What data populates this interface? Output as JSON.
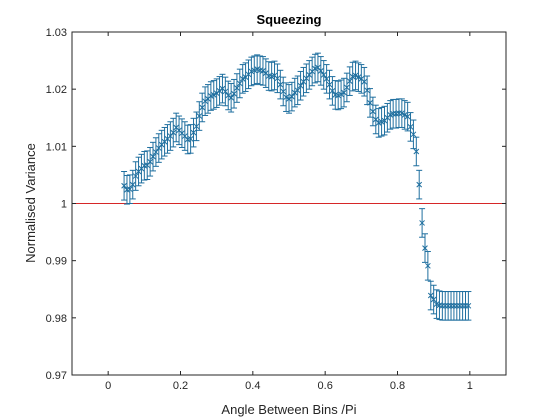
{
  "chart_data": {
    "type": "scatter",
    "title": "Squeezing",
    "xlabel": "Angle Between Bins /Pi",
    "ylabel": "Normalised Variance",
    "xlim": [
      -0.1,
      1.1
    ],
    "ylim": [
      0.97,
      1.03
    ],
    "x_ticks": [
      0,
      0.2,
      0.4,
      0.6,
      0.8,
      1
    ],
    "x_tick_labels": [
      "0",
      "0.2",
      "0.4",
      "0.6",
      "0.8",
      "1"
    ],
    "y_ticks": [
      0.97,
      0.98,
      0.99,
      1,
      1.01,
      1.02,
      1.03
    ],
    "y_tick_labels": [
      "0.97",
      "0.98",
      "0.99",
      "1",
      "1.01",
      "1.02",
      "1.03"
    ],
    "grid": false,
    "reference_line": {
      "y": 1,
      "color": "#d62728"
    },
    "series": [
      {
        "color": "#1f6f9f",
        "marker": "x",
        "error": 0.0025,
        "x": [
          0.044,
          0.052,
          0.06,
          0.068,
          0.076,
          0.084,
          0.092,
          0.1,
          0.108,
          0.116,
          0.124,
          0.132,
          0.14,
          0.148,
          0.156,
          0.164,
          0.172,
          0.18,
          0.188,
          0.196,
          0.204,
          0.212,
          0.22,
          0.228,
          0.236,
          0.244,
          0.252,
          0.26,
          0.268,
          0.276,
          0.284,
          0.292,
          0.3,
          0.308,
          0.316,
          0.324,
          0.332,
          0.34,
          0.348,
          0.356,
          0.364,
          0.372,
          0.38,
          0.388,
          0.396,
          0.404,
          0.412,
          0.42,
          0.428,
          0.436,
          0.444,
          0.452,
          0.46,
          0.468,
          0.476,
          0.484,
          0.492,
          0.5,
          0.508,
          0.516,
          0.524,
          0.532,
          0.54,
          0.548,
          0.556,
          0.564,
          0.572,
          0.58,
          0.588,
          0.596,
          0.604,
          0.612,
          0.62,
          0.628,
          0.636,
          0.644,
          0.652,
          0.66,
          0.668,
          0.676,
          0.684,
          0.692,
          0.7,
          0.708,
          0.716,
          0.724,
          0.732,
          0.74,
          0.748,
          0.756,
          0.764,
          0.772,
          0.78,
          0.788,
          0.796,
          0.804,
          0.812,
          0.82,
          0.828,
          0.836,
          0.844,
          0.852,
          0.86,
          0.868,
          0.876,
          0.884,
          0.892,
          0.9,
          0.908,
          0.916,
          0.924,
          0.932,
          0.94,
          0.948,
          0.956,
          0.964,
          0.972,
          0.98,
          0.988,
          0.996
        ],
        "y": [
          1.0031,
          1.0024,
          1.0025,
          1.0033,
          1.0048,
          1.0056,
          1.0061,
          1.0066,
          1.0067,
          1.0073,
          1.0082,
          1.009,
          1.0097,
          1.0103,
          1.0108,
          1.0113,
          1.0118,
          1.0124,
          1.0133,
          1.0128,
          1.0123,
          1.0118,
          1.0112,
          1.0113,
          1.0124,
          1.0135,
          1.0153,
          1.0168,
          1.0179,
          1.0183,
          1.0188,
          1.019,
          1.0193,
          1.0197,
          1.0201,
          1.0196,
          1.0189,
          1.0185,
          1.0192,
          1.0202,
          1.021,
          1.0218,
          1.0221,
          1.0226,
          1.0231,
          1.0233,
          1.0235,
          1.0233,
          1.0232,
          1.0228,
          1.0223,
          1.0222,
          1.0224,
          1.0219,
          1.0208,
          1.0196,
          1.0186,
          1.0183,
          1.0187,
          1.0194,
          1.0198,
          1.0206,
          1.0213,
          1.0219,
          1.0225,
          1.0231,
          1.0236,
          1.0238,
          1.0232,
          1.0225,
          1.0218,
          1.0208,
          1.0197,
          1.019,
          1.0189,
          1.0191,
          1.0194,
          1.0203,
          1.0214,
          1.0222,
          1.0224,
          1.0221,
          1.0218,
          1.0213,
          1.0198,
          1.0176,
          1.0161,
          1.0147,
          1.0141,
          1.0143,
          1.0145,
          1.015,
          1.0155,
          1.0157,
          1.0157,
          1.0158,
          1.0158,
          1.0155,
          1.0152,
          1.0134,
          1.0121,
          1.0091,
          1.0033,
          0.9966,
          0.9922,
          0.9891,
          0.9839,
          0.9832,
          0.9824,
          0.9822,
          0.9821,
          0.9821,
          0.9821,
          0.9821,
          0.9821,
          0.9821,
          0.9821,
          0.9821,
          0.9821,
          0.9821
        ]
      }
    ]
  }
}
